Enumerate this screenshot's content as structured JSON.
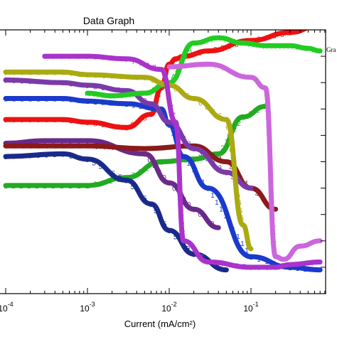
{
  "chart_data": {
    "type": "line",
    "title": "Data Graph",
    "xlabel": "Current (mA/cm²)",
    "ylabel": "",
    "x_scale": "log",
    "xlim": [
      0.0001,
      0.8
    ],
    "ylim": [
      0,
      10
    ],
    "x_ticks": [
      {
        "base": "10",
        "exp": "-4",
        "value": 0.0001
      },
      {
        "base": "10",
        "exp": "-3",
        "value": 0.001
      },
      {
        "base": "10",
        "exp": "-2",
        "value": 0.01
      },
      {
        "base": "10",
        "exp": "-1",
        "value": 0.1
      }
    ],
    "legend_fragment": "Gra",
    "series": [
      {
        "marker": "2",
        "color": "#22aa22",
        "x": [
          0.0001,
          0.0003,
          0.001,
          0.003,
          0.008,
          0.02,
          0.04,
          0.08,
          0.15
        ],
        "y": [
          4.1,
          4.1,
          4.1,
          4.4,
          5.0,
          5.1,
          5.3,
          6.7,
          7.1
        ]
      },
      {
        "marker": "5",
        "color": "#1a2a8a",
        "x": [
          0.0001,
          0.0005,
          0.001,
          0.003,
          0.006,
          0.01,
          0.02,
          0.05
        ],
        "y": [
          5.2,
          5.3,
          5.1,
          4.3,
          3.4,
          2.4,
          1.5,
          0.9
        ]
      },
      {
        "marker": "0",
        "color": "#6a2a8a",
        "x": [
          0.0001,
          0.0003,
          0.001,
          0.005,
          0.01,
          0.02,
          0.04
        ],
        "y": [
          5.7,
          5.8,
          5.8,
          5.3,
          4.2,
          3.2,
          2.5
        ]
      },
      {
        "marker": "4",
        "color": "#8b1a1a",
        "x": [
          0.0001,
          0.001,
          0.005,
          0.02,
          0.05,
          0.1,
          0.2
        ],
        "y": [
          5.6,
          5.6,
          5.5,
          5.6,
          5.0,
          4.0,
          3.2
        ]
      },
      {
        "marker": "8",
        "color": "#ee1111",
        "x": [
          0.0001,
          0.0005,
          0.001,
          0.003,
          0.006,
          0.008,
          0.01,
          0.012,
          0.015,
          0.03,
          0.1,
          0.3,
          0.7
        ],
        "y": [
          6.6,
          6.6,
          6.5,
          6.3,
          6.8,
          7.8,
          8.7,
          8.9,
          9.0,
          9.2,
          9.6,
          9.9,
          10.2
        ]
      },
      {
        "marker": "1",
        "color": "#1a3acc",
        "x": [
          0.0001,
          0.0005,
          0.001,
          0.003,
          0.008,
          0.01,
          0.015,
          0.03,
          0.1,
          0.3,
          0.7
        ],
        "y": [
          7.4,
          7.4,
          7.3,
          7.2,
          7.0,
          6.4,
          5.2,
          4.0,
          1.4,
          1.0,
          0.9
        ]
      },
      {
        "marker": "3",
        "color": "#7a3aaa",
        "x": [
          0.0001,
          0.0005,
          0.001,
          0.003,
          0.006,
          0.01,
          0.02,
          0.05,
          0.1
        ],
        "y": [
          8.1,
          8.0,
          7.9,
          7.7,
          7.2,
          6.5,
          5.5,
          4.6,
          4.0
        ]
      },
      {
        "marker": "A",
        "color": "#22cc22",
        "x": [
          0.001,
          0.002,
          0.005,
          0.01,
          0.02,
          0.04,
          0.08,
          0.15,
          0.3,
          0.5,
          0.7
        ],
        "y": [
          7.6,
          7.5,
          7.6,
          8.0,
          9.5,
          9.7,
          9.5,
          9.4,
          9.4,
          9.3,
          9.2
        ]
      },
      {
        "marker": "6",
        "color": "#aaaa11",
        "x": [
          0.0001,
          0.0005,
          0.001,
          0.005,
          0.01,
          0.02,
          0.05,
          0.08,
          0.1
        ],
        "y": [
          8.4,
          8.4,
          8.3,
          8.2,
          7.9,
          7.4,
          6.6,
          2.6,
          1.7
        ]
      },
      {
        "marker": "7",
        "color": "#aa33cc",
        "x": [
          0.0003,
          0.001,
          0.003,
          0.008,
          0.012,
          0.015,
          0.03,
          0.1,
          0.2,
          0.3,
          0.7
        ],
        "y": [
          9.0,
          9.0,
          8.9,
          8.5,
          6.5,
          2.0,
          1.2,
          1.0,
          1.0,
          1.1,
          1.2
        ]
      },
      {
        "marker": "+",
        "color": "#cc66dd",
        "x": [
          0.01,
          0.03,
          0.1,
          0.15,
          0.2,
          0.25,
          0.4,
          0.7
        ],
        "y": [
          8.6,
          8.7,
          8.2,
          7.8,
          1.4,
          1.3,
          1.8,
          2.0
        ]
      }
    ]
  }
}
